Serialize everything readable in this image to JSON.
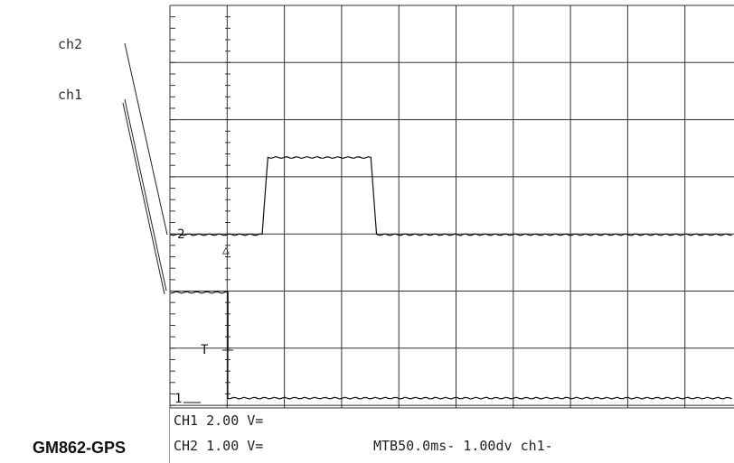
{
  "chart_data": {
    "type": "line",
    "title": "",
    "device_label": "GM862-GPS",
    "xlabel": "",
    "ylabel": "",
    "grid": true,
    "x_unit": "ms",
    "x_divisions": 10,
    "y_divisions": 8,
    "time_per_div_ms": 50,
    "series": [
      {
        "name": "ch2",
        "marker": "2",
        "volts_per_div": 1.0,
        "x_ms": [
          -50,
          30,
          35,
          125,
          130,
          450
        ],
        "y_div": [
          0,
          0,
          1.35,
          1.35,
          0,
          0
        ]
      },
      {
        "name": "ch1",
        "marker": "1",
        "volts_per_div": 2.0,
        "x_ms": [
          -50,
          0,
          0,
          450
        ],
        "y_div": [
          0,
          0,
          -1.85,
          -1.85
        ]
      }
    ],
    "trigger": {
      "marker": "T",
      "x_ms": 0,
      "arrow_symbol": "△"
    },
    "annotations": {
      "probe_labels": [
        "ch2",
        "ch1"
      ],
      "readout": {
        "ch1": {
          "label": "CH1",
          "value": "2.00",
          "unit": "V="
        },
        "ch2": {
          "label": "CH2",
          "value": "1.00",
          "unit": "V="
        },
        "timebase": "MTB50.0ms-",
        "trigger_level": "1.00dv",
        "trigger_source": "ch1-"
      }
    }
  }
}
